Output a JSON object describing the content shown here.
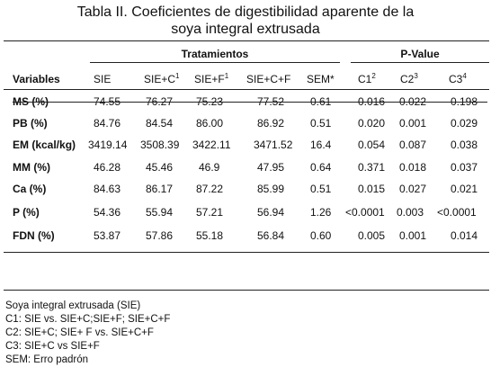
{
  "title_line1": "Tabla II. Coeficientes de digestibilidad aparente de la",
  "title_line2": "soya integral extrusada",
  "groups": {
    "tratamientos": "Tratamientos",
    "pvalue": "P-Value"
  },
  "headers": {
    "variables": "Variables",
    "sie": "SIE",
    "siec_base": "SIE+C",
    "siec_sup": "1",
    "sief_base": "SIE+F",
    "sief_sup": "1",
    "siecf": "SIE+C+F",
    "sem": "SEM*",
    "c1_base": "C1",
    "c1_sup": "2",
    "c2_base": "C2",
    "c2_sup": "3",
    "c3_base": "C3",
    "c3_sup": "4"
  },
  "rows": [
    {
      "var": "MS (%)",
      "sie": "74.55",
      "siec": "76.27",
      "sief": "75.23",
      "siecf": "77.52",
      "sem": "0.61",
      "c1": "0.016",
      "c2": "0.022",
      "c3": "0.198"
    },
    {
      "var": "PB (%)",
      "sie": "84.76",
      "siec": "84.54",
      "sief": "86.00",
      "siecf": "86.92",
      "sem": "0.51",
      "c1": "0.020",
      "c2": "0.001",
      "c3": "0.029"
    },
    {
      "var": "EM (kcal/kg)",
      "sie": "3419.14",
      "siec": "3508.39",
      "sief": "3422.11",
      "siecf": "3471.52",
      "sem": "16.4",
      "c1": "0.054",
      "c2": "0.087",
      "c3": "0.038"
    },
    {
      "var": "MM (%)",
      "sie": "46.28",
      "siec": "45.46",
      "sief": "46.9",
      "siecf": "47.95",
      "sem": "0.64",
      "c1": "0.371",
      "c2": "0.018",
      "c3": "0.037"
    },
    {
      "var": "Ca (%)",
      "sie": "84.63",
      "siec": "86.17",
      "sief": "87.22",
      "siecf": "85.99",
      "sem": "0.51",
      "c1": "0.015",
      "c2": "0.027",
      "c3": "0.021"
    },
    {
      "var": "P (%)",
      "sie": "54.36",
      "siec": "55.94",
      "sief": "57.21",
      "siecf": "56.94",
      "sem": "1.26",
      "c1": "<0.0001",
      "c2": "0.003",
      "c3": "<0.0001"
    },
    {
      "var": "FDN (%)",
      "sie": "53.87",
      "siec": "57.86",
      "sief": "55.18",
      "siecf": "56.84",
      "sem": "0.60",
      "c1": "0.005",
      "c2": "0.001",
      "c3": "0.014"
    }
  ],
  "footnotes": [
    "Soya integral extrusada (SIE)",
    "C1: SIE vs. SIE+C;SIE+F; SIE+C+F",
    "C2: SIE+C; SIE+ F vs. SIE+C+F",
    "C3: SIE+C vs SIE+F",
    "SEM: Erro padrón"
  ]
}
